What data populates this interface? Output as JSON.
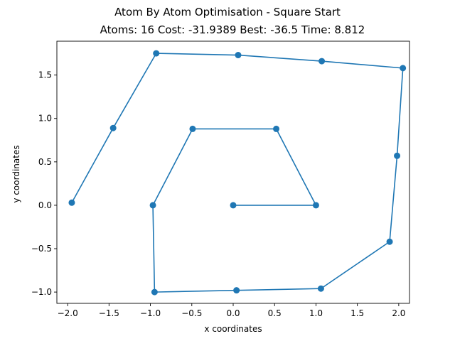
{
  "chart_data": {
    "type": "line",
    "title": "Atom By Atom Optimisation - Square Start",
    "subtitle": "Atoms: 16 Cost: -31.9389 Best: -36.5 Time: 8.812",
    "xlabel": "x coordinates",
    "ylabel": "y coordinates",
    "xlim": [
      -2.13,
      2.13
    ],
    "ylim": [
      -1.13,
      1.89
    ],
    "xticks": [
      -2.0,
      -1.5,
      -1.0,
      -0.5,
      0.0,
      0.5,
      1.0,
      1.5,
      2.0
    ],
    "xtick_labels": [
      "−2.0",
      "−1.5",
      "−1.0",
      "−0.5",
      "0.0",
      "0.5",
      "1.0",
      "1.5",
      "2.0"
    ],
    "yticks": [
      -1.0,
      -0.5,
      0.0,
      0.5,
      1.0,
      1.5
    ],
    "ytick_labels": [
      "−1.0",
      "−0.5",
      "0.0",
      "0.5",
      "1.0",
      "1.5"
    ],
    "grid": false,
    "series": [
      {
        "color": "#1f77b4",
        "marker": "circle",
        "points": [
          [
            0.0,
            0.0
          ],
          [
            1.0,
            0.0
          ],
          [
            0.52,
            0.88
          ],
          [
            -0.49,
            0.88
          ],
          [
            -0.97,
            0.0
          ],
          [
            -0.95,
            -1.0
          ],
          [
            0.04,
            -0.98
          ],
          [
            1.06,
            -0.96
          ],
          [
            1.89,
            -0.42
          ],
          [
            1.98,
            0.57
          ],
          [
            2.05,
            1.58
          ],
          [
            1.07,
            1.66
          ],
          [
            0.06,
            1.73
          ],
          [
            -0.93,
            1.75
          ],
          [
            -1.45,
            0.89
          ],
          [
            -1.95,
            0.03
          ]
        ]
      }
    ]
  }
}
